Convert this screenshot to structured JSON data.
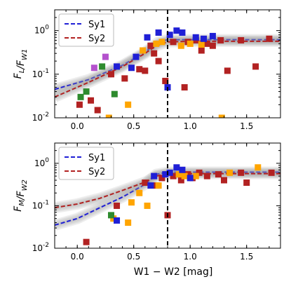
{
  "chart_data": [
    {
      "type": "scatter",
      "panel": "top",
      "ylabel": "F_L/F_W1",
      "xlabel": "",
      "xlim": [
        -0.2,
        1.8
      ],
      "ylim": [
        0.01,
        3
      ],
      "yscale": "log",
      "xticks": [
        "0.0",
        "0.5",
        "1.0",
        "1.5"
      ],
      "yticks": [
        "10^-2",
        "10^-1",
        "10^0"
      ],
      "vline_x": 0.8,
      "legend": {
        "placement": "top-left",
        "entries": [
          "Sy1",
          "Sy2"
        ]
      },
      "fits": [
        {
          "name": "Sy1",
          "color": "#1f1fd6",
          "x": [
            -0.2,
            0.1,
            0.4,
            0.6,
            0.72,
            0.8,
            1.0,
            1.5,
            1.8
          ],
          "y": [
            0.045,
            0.075,
            0.16,
            0.32,
            0.55,
            0.62,
            0.62,
            0.62,
            0.62
          ]
        },
        {
          "name": "Sy2",
          "color": "#b22222",
          "x": [
            -0.2,
            0.1,
            0.4,
            0.6,
            0.7,
            0.8,
            1.0,
            1.5,
            1.8
          ],
          "y": [
            0.03,
            0.065,
            0.15,
            0.3,
            0.45,
            0.55,
            0.57,
            0.57,
            0.57
          ]
        }
      ],
      "points": [
        {
          "x": 0.03,
          "y": 0.03,
          "c": "#2e8b2e"
        },
        {
          "x": 0.08,
          "y": 0.04,
          "c": "#2e8b2e"
        },
        {
          "x": 0.22,
          "y": 0.15,
          "c": "#2e8b2e"
        },
        {
          "x": 0.33,
          "y": 0.035,
          "c": "#2e8b2e"
        },
        {
          "x": 0.15,
          "y": 0.14,
          "c": "#b452cd"
        },
        {
          "x": 0.25,
          "y": 0.25,
          "c": "#b452cd"
        },
        {
          "x": 0.02,
          "y": 0.02,
          "c": "#b22222"
        },
        {
          "x": 0.12,
          "y": 0.025,
          "c": "#b22222"
        },
        {
          "x": 0.18,
          "y": 0.015,
          "c": "#b22222"
        },
        {
          "x": 0.3,
          "y": 0.1,
          "c": "#b22222"
        },
        {
          "x": 0.42,
          "y": 0.08,
          "c": "#b22222"
        },
        {
          "x": 0.55,
          "y": 0.13,
          "c": "#b22222"
        },
        {
          "x": 0.6,
          "y": 0.12,
          "c": "#b22222"
        },
        {
          "x": 0.65,
          "y": 0.45,
          "c": "#b22222"
        },
        {
          "x": 0.68,
          "y": 0.3,
          "c": "#b22222"
        },
        {
          "x": 0.72,
          "y": 0.2,
          "c": "#b22222"
        },
        {
          "x": 0.78,
          "y": 0.07,
          "c": "#b22222"
        },
        {
          "x": 0.85,
          "y": 0.55,
          "c": "#b22222"
        },
        {
          "x": 0.95,
          "y": 0.05,
          "c": "#b22222"
        },
        {
          "x": 0.98,
          "y": 0.55,
          "c": "#b22222"
        },
        {
          "x": 1.05,
          "y": 0.6,
          "c": "#b22222"
        },
        {
          "x": 1.1,
          "y": 0.35,
          "c": "#b22222"
        },
        {
          "x": 1.15,
          "y": 0.5,
          "c": "#b22222"
        },
        {
          "x": 1.2,
          "y": 0.45,
          "c": "#b22222"
        },
        {
          "x": 1.27,
          "y": 0.6,
          "c": "#b22222"
        },
        {
          "x": 1.33,
          "y": 0.12,
          "c": "#b22222"
        },
        {
          "x": 1.45,
          "y": 0.6,
          "c": "#b22222"
        },
        {
          "x": 1.58,
          "y": 0.15,
          "c": "#b22222"
        },
        {
          "x": 1.7,
          "y": 0.65,
          "c": "#b22222"
        },
        {
          "x": 0.25,
          "y": 0.65,
          "c": "#ffa500"
        },
        {
          "x": 0.28,
          "y": 0.01,
          "c": "#ffa500"
        },
        {
          "x": 0.45,
          "y": 0.02,
          "c": "#ffa500"
        },
        {
          "x": 0.58,
          "y": 0.35,
          "c": "#ffa500"
        },
        {
          "x": 0.7,
          "y": 0.5,
          "c": "#ffa500"
        },
        {
          "x": 0.75,
          "y": 0.55,
          "c": "#ffa500"
        },
        {
          "x": 0.92,
          "y": 0.45,
          "c": "#ffa500"
        },
        {
          "x": 1.0,
          "y": 0.5,
          "c": "#ffa500"
        },
        {
          "x": 1.1,
          "y": 0.48,
          "c": "#ffa500"
        },
        {
          "x": 1.28,
          "y": 0.01,
          "c": "#ffa500"
        },
        {
          "x": 0.35,
          "y": 0.15,
          "c": "#1f1fd6"
        },
        {
          "x": 0.48,
          "y": 0.14,
          "c": "#1f1fd6"
        },
        {
          "x": 0.52,
          "y": 0.25,
          "c": "#1f1fd6"
        },
        {
          "x": 0.62,
          "y": 0.7,
          "c": "#1f1fd6"
        },
        {
          "x": 0.72,
          "y": 0.9,
          "c": "#1f1fd6"
        },
        {
          "x": 0.8,
          "y": 0.05,
          "c": "#1f1fd6"
        },
        {
          "x": 0.82,
          "y": 0.8,
          "c": "#1f1fd6"
        },
        {
          "x": 0.88,
          "y": 1.0,
          "c": "#1f1fd6"
        },
        {
          "x": 0.93,
          "y": 0.9,
          "c": "#1f1fd6"
        },
        {
          "x": 1.05,
          "y": 0.7,
          "c": "#1f1fd6"
        },
        {
          "x": 1.12,
          "y": 0.65,
          "c": "#1f1fd6"
        },
        {
          "x": 1.2,
          "y": 0.75,
          "c": "#1f1fd6"
        }
      ]
    },
    {
      "type": "scatter",
      "panel": "bottom",
      "ylabel": "F_M/F_W2",
      "xlabel": "W1 − W2 [mag]",
      "xlim": [
        -0.2,
        1.8
      ],
      "ylim": [
        0.01,
        3
      ],
      "yscale": "log",
      "xticks": [
        "0.0",
        "0.5",
        "1.0",
        "1.5"
      ],
      "yticks": [
        "10^-2",
        "10^-1",
        "10^0"
      ],
      "vline_x": 0.8,
      "legend": {
        "placement": "top-left",
        "entries": [
          "Sy1",
          "Sy2"
        ]
      },
      "fits": [
        {
          "name": "Sy1",
          "color": "#1f1fd6",
          "x": [
            -0.2,
            0.0,
            0.2,
            0.4,
            0.6,
            0.7,
            0.8,
            1.0,
            1.5,
            1.8
          ],
          "y": [
            0.035,
            0.05,
            0.09,
            0.16,
            0.32,
            0.55,
            0.62,
            0.62,
            0.62,
            0.62
          ]
        },
        {
          "name": "Sy2",
          "color": "#b22222",
          "x": [
            -0.2,
            0.0,
            0.2,
            0.4,
            0.6,
            0.7,
            0.8,
            1.0,
            1.5,
            1.8
          ],
          "y": [
            0.09,
            0.11,
            0.15,
            0.23,
            0.36,
            0.5,
            0.57,
            0.57,
            0.57,
            0.57
          ]
        }
      ],
      "points": [
        {
          "x": 0.08,
          "y": 0.014,
          "c": "#b22222"
        },
        {
          "x": 0.35,
          "y": 0.1,
          "c": "#b22222"
        },
        {
          "x": 0.6,
          "y": 0.35,
          "c": "#b22222"
        },
        {
          "x": 0.7,
          "y": 0.3,
          "c": "#b22222"
        },
        {
          "x": 0.75,
          "y": 0.45,
          "c": "#b22222"
        },
        {
          "x": 0.8,
          "y": 0.06,
          "c": "#b22222"
        },
        {
          "x": 0.85,
          "y": 0.5,
          "c": "#b22222"
        },
        {
          "x": 0.92,
          "y": 0.4,
          "c": "#b22222"
        },
        {
          "x": 0.98,
          "y": 0.55,
          "c": "#b22222"
        },
        {
          "x": 1.02,
          "y": 0.45,
          "c": "#b22222"
        },
        {
          "x": 1.08,
          "y": 0.6,
          "c": "#b22222"
        },
        {
          "x": 1.15,
          "y": 0.5,
          "c": "#b22222"
        },
        {
          "x": 1.25,
          "y": 0.55,
          "c": "#b22222"
        },
        {
          "x": 1.3,
          "y": 0.4,
          "c": "#b22222"
        },
        {
          "x": 1.45,
          "y": 0.6,
          "c": "#b22222"
        },
        {
          "x": 1.5,
          "y": 0.35,
          "c": "#b22222"
        },
        {
          "x": 1.72,
          "y": 0.6,
          "c": "#b22222"
        },
        {
          "x": 0.32,
          "y": 0.05,
          "c": "#ffa500"
        },
        {
          "x": 0.45,
          "y": 0.04,
          "c": "#ffa500"
        },
        {
          "x": 0.48,
          "y": 0.12,
          "c": "#ffa500"
        },
        {
          "x": 0.55,
          "y": 0.2,
          "c": "#ffa500"
        },
        {
          "x": 0.62,
          "y": 0.1,
          "c": "#ffa500"
        },
        {
          "x": 0.72,
          "y": 0.3,
          "c": "#ffa500"
        },
        {
          "x": 0.9,
          "y": 0.55,
          "c": "#ffa500"
        },
        {
          "x": 0.95,
          "y": 0.5,
          "c": "#ffa500"
        },
        {
          "x": 1.05,
          "y": 0.5,
          "c": "#ffa500"
        },
        {
          "x": 1.6,
          "y": 0.8,
          "c": "#ffa500"
        },
        {
          "x": 1.35,
          "y": 0.6,
          "c": "#ffa500"
        },
        {
          "x": 0.3,
          "y": 0.06,
          "c": "#2e8b2e"
        },
        {
          "x": 0.35,
          "y": 0.045,
          "c": "#1f1fd6"
        },
        {
          "x": 0.65,
          "y": 0.3,
          "c": "#1f1fd6"
        },
        {
          "x": 0.68,
          "y": 0.5,
          "c": "#1f1fd6"
        },
        {
          "x": 0.78,
          "y": 0.55,
          "c": "#1f1fd6"
        },
        {
          "x": 0.82,
          "y": 0.6,
          "c": "#1f1fd6"
        },
        {
          "x": 0.88,
          "y": 0.8,
          "c": "#1f1fd6"
        },
        {
          "x": 0.93,
          "y": 0.7,
          "c": "#1f1fd6"
        },
        {
          "x": 1.0,
          "y": 0.45,
          "c": "#1f1fd6"
        }
      ]
    }
  ]
}
